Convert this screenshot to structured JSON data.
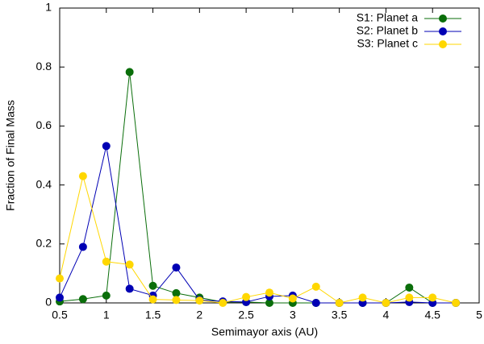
{
  "chart_data": {
    "type": "line",
    "x_label": "Semimayor axis (AU)",
    "y_label": "Fraction of Final Mass",
    "x": [
      0.5,
      0.75,
      1,
      1.25,
      1.5,
      1.75,
      2,
      2.25,
      2.5,
      2.75,
      3,
      3.25,
      3.5,
      3.75,
      4,
      4.25,
      4.5,
      4.75
    ],
    "series": [
      {
        "name": "S1: Planet a",
        "color": "#0a6e0a",
        "values": [
          0.005,
          0.013,
          0.025,
          0.783,
          0.058,
          0.033,
          0.018,
          0.003,
          0.003,
          0,
          0,
          0,
          0,
          0,
          0,
          0.052,
          0,
          0
        ]
      },
      {
        "name": "S2: Planet b",
        "color": "#0000b4",
        "values": [
          0.018,
          0.19,
          0.532,
          0.048,
          0.025,
          0.12,
          0.01,
          0.005,
          0.003,
          0.022,
          0.025,
          0,
          0,
          0,
          0,
          0.003,
          0,
          0
        ]
      },
      {
        "name": "S3: Planet c",
        "color": "#ffd700",
        "values": [
          0.083,
          0.43,
          0.14,
          0.13,
          0.012,
          0.01,
          0.008,
          0,
          0.02,
          0.035,
          0.015,
          0.055,
          0,
          0.018,
          0,
          0.018,
          0.018,
          0
        ]
      }
    ],
    "xlim": [
      0.5,
      5
    ],
    "xticks": [
      0.5,
      1,
      1.5,
      2,
      2.5,
      3,
      3.5,
      4,
      4.5,
      5
    ],
    "ylim": [
      0,
      1
    ],
    "yticks": [
      0,
      0.2,
      0.4,
      0.6,
      0.8,
      1
    ],
    "legend": "top right"
  }
}
